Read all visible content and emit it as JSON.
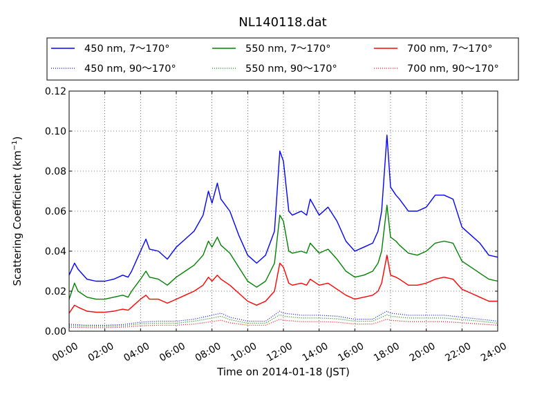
{
  "chart_data": {
    "type": "line",
    "title": "NL140118.dat",
    "xlabel": "Time on 2014-01-18 (JST)",
    "ylabel": "Scattering Coefficient (km",
    "ylabel_sup": "−1",
    "ylabel_close": ")",
    "xlim": [
      0,
      24
    ],
    "ylim": [
      0,
      0.12
    ],
    "x_ticks": [
      "00:00",
      "02:00",
      "04:00",
      "06:00",
      "08:00",
      "10:00",
      "12:00",
      "14:00",
      "16:00",
      "18:00",
      "20:00",
      "22:00",
      "24:00"
    ],
    "y_ticks": [
      "0.00",
      "0.02",
      "0.04",
      "0.06",
      "0.08",
      "0.10",
      "0.12"
    ],
    "grid": true,
    "legend_position": "above plot, 3 columns",
    "series": [
      {
        "name": "450 nm, 7～170°",
        "color": "#0000ff",
        "style": "solid",
        "x": [
          0,
          0.3,
          0.5,
          1,
          1.5,
          2,
          2.5,
          3,
          3.3,
          3.5,
          4,
          4.3,
          4.5,
          5,
          5.5,
          6,
          6.5,
          7,
          7.5,
          7.8,
          8,
          8.3,
          8.5,
          9,
          9.5,
          10,
          10.5,
          11,
          11.5,
          11.8,
          12,
          12.3,
          12.5,
          13,
          13.3,
          13.5,
          14,
          14.5,
          15,
          15.5,
          16,
          16.5,
          17,
          17.3,
          17.5,
          17.8,
          18,
          18.3,
          18.5,
          19,
          19.5,
          20,
          20.5,
          21,
          21.5,
          22,
          22.5,
          23,
          23.5,
          24
        ],
        "values": [
          0.028,
          0.034,
          0.031,
          0.026,
          0.025,
          0.025,
          0.026,
          0.028,
          0.027,
          0.03,
          0.04,
          0.046,
          0.041,
          0.04,
          0.036,
          0.042,
          0.046,
          0.05,
          0.058,
          0.07,
          0.064,
          0.074,
          0.066,
          0.06,
          0.048,
          0.038,
          0.034,
          0.038,
          0.05,
          0.09,
          0.085,
          0.06,
          0.058,
          0.06,
          0.058,
          0.066,
          0.058,
          0.062,
          0.055,
          0.045,
          0.04,
          0.042,
          0.044,
          0.05,
          0.06,
          0.098,
          0.072,
          0.068,
          0.066,
          0.06,
          0.06,
          0.062,
          0.068,
          0.068,
          0.066,
          0.052,
          0.048,
          0.044,
          0.038,
          0.037
        ]
      },
      {
        "name": "550 nm, 7～170°",
        "color": "#008000",
        "style": "solid",
        "x": [
          0,
          0.3,
          0.5,
          1,
          1.5,
          2,
          2.5,
          3,
          3.3,
          3.5,
          4,
          4.3,
          4.5,
          5,
          5.5,
          6,
          6.5,
          7,
          7.5,
          7.8,
          8,
          8.3,
          8.5,
          9,
          9.5,
          10,
          10.5,
          11,
          11.5,
          11.8,
          12,
          12.3,
          12.5,
          13,
          13.3,
          13.5,
          14,
          14.5,
          15,
          15.5,
          16,
          16.5,
          17,
          17.3,
          17.5,
          17.8,
          18,
          18.3,
          18.5,
          19,
          19.5,
          20,
          20.5,
          21,
          21.5,
          22,
          22.5,
          23,
          23.5,
          24
        ],
        "values": [
          0.016,
          0.024,
          0.02,
          0.017,
          0.016,
          0.016,
          0.017,
          0.018,
          0.017,
          0.02,
          0.026,
          0.03,
          0.027,
          0.026,
          0.023,
          0.027,
          0.03,
          0.033,
          0.038,
          0.045,
          0.042,
          0.047,
          0.043,
          0.039,
          0.032,
          0.025,
          0.022,
          0.025,
          0.034,
          0.058,
          0.055,
          0.04,
          0.039,
          0.04,
          0.039,
          0.044,
          0.039,
          0.041,
          0.036,
          0.03,
          0.027,
          0.028,
          0.03,
          0.034,
          0.04,
          0.063,
          0.047,
          0.045,
          0.043,
          0.039,
          0.038,
          0.04,
          0.044,
          0.045,
          0.044,
          0.035,
          0.032,
          0.029,
          0.026,
          0.025
        ]
      },
      {
        "name": "700 nm, 7～170°",
        "color": "#ff0000",
        "style": "solid",
        "x": [
          0,
          0.3,
          0.5,
          1,
          1.5,
          2,
          2.5,
          3,
          3.3,
          3.5,
          4,
          4.3,
          4.5,
          5,
          5.5,
          6,
          6.5,
          7,
          7.5,
          7.8,
          8,
          8.3,
          8.5,
          9,
          9.5,
          10,
          10.5,
          11,
          11.5,
          11.8,
          12,
          12.3,
          12.5,
          13,
          13.3,
          13.5,
          14,
          14.5,
          15,
          15.5,
          16,
          16.5,
          17,
          17.3,
          17.5,
          17.8,
          18,
          18.3,
          18.5,
          19,
          19.5,
          20,
          20.5,
          21,
          21.5,
          22,
          22.5,
          23,
          23.5,
          24
        ],
        "values": [
          0.009,
          0.013,
          0.012,
          0.01,
          0.0095,
          0.0095,
          0.01,
          0.011,
          0.0105,
          0.012,
          0.016,
          0.018,
          0.016,
          0.016,
          0.014,
          0.016,
          0.018,
          0.02,
          0.023,
          0.027,
          0.025,
          0.028,
          0.026,
          0.023,
          0.019,
          0.015,
          0.013,
          0.015,
          0.02,
          0.034,
          0.032,
          0.024,
          0.023,
          0.024,
          0.023,
          0.026,
          0.023,
          0.024,
          0.021,
          0.018,
          0.016,
          0.017,
          0.018,
          0.02,
          0.024,
          0.038,
          0.028,
          0.027,
          0.026,
          0.023,
          0.023,
          0.024,
          0.026,
          0.027,
          0.026,
          0.021,
          0.019,
          0.017,
          0.015,
          0.015
        ]
      },
      {
        "name": "450 nm, 90～170°",
        "color": "#0000ff",
        "style": "dotted",
        "x": [
          0,
          1,
          2,
          3,
          4,
          5,
          6,
          7,
          8,
          8.5,
          9,
          10,
          11,
          11.8,
          12,
          13,
          14,
          15,
          16,
          17,
          17.8,
          18,
          19,
          20,
          21,
          22,
          23,
          24
        ],
        "values": [
          0.0035,
          0.003,
          0.003,
          0.0033,
          0.0045,
          0.005,
          0.005,
          0.006,
          0.008,
          0.009,
          0.007,
          0.005,
          0.005,
          0.01,
          0.009,
          0.008,
          0.008,
          0.0075,
          0.006,
          0.006,
          0.01,
          0.009,
          0.008,
          0.008,
          0.008,
          0.007,
          0.006,
          0.005
        ]
      },
      {
        "name": "550 nm, 90～170°",
        "color": "#008000",
        "style": "dotted",
        "x": [
          0,
          1,
          2,
          3,
          4,
          5,
          6,
          7,
          8,
          8.5,
          9,
          10,
          11,
          11.8,
          12,
          13,
          14,
          15,
          16,
          17,
          17.8,
          18,
          19,
          20,
          21,
          22,
          23,
          24
        ],
        "values": [
          0.0028,
          0.0025,
          0.0025,
          0.0027,
          0.0037,
          0.004,
          0.004,
          0.005,
          0.0065,
          0.0075,
          0.0058,
          0.004,
          0.004,
          0.0082,
          0.0075,
          0.0066,
          0.0066,
          0.0062,
          0.005,
          0.005,
          0.0082,
          0.0075,
          0.0066,
          0.0066,
          0.0066,
          0.0058,
          0.005,
          0.004
        ]
      },
      {
        "name": "700 nm, 90～170°",
        "color": "#ff0000",
        "style": "dotted",
        "x": [
          0,
          1,
          2,
          3,
          4,
          5,
          6,
          7,
          8,
          8.5,
          9,
          10,
          11,
          11.8,
          12,
          13,
          14,
          15,
          16,
          17,
          17.8,
          18,
          19,
          20,
          21,
          22,
          23,
          24
        ],
        "values": [
          0.002,
          0.0018,
          0.0018,
          0.002,
          0.0027,
          0.003,
          0.003,
          0.0036,
          0.0048,
          0.0055,
          0.0042,
          0.003,
          0.003,
          0.006,
          0.0055,
          0.0048,
          0.0048,
          0.0045,
          0.0036,
          0.0036,
          0.006,
          0.0055,
          0.0048,
          0.0048,
          0.0048,
          0.0042,
          0.0036,
          0.003
        ]
      }
    ]
  }
}
